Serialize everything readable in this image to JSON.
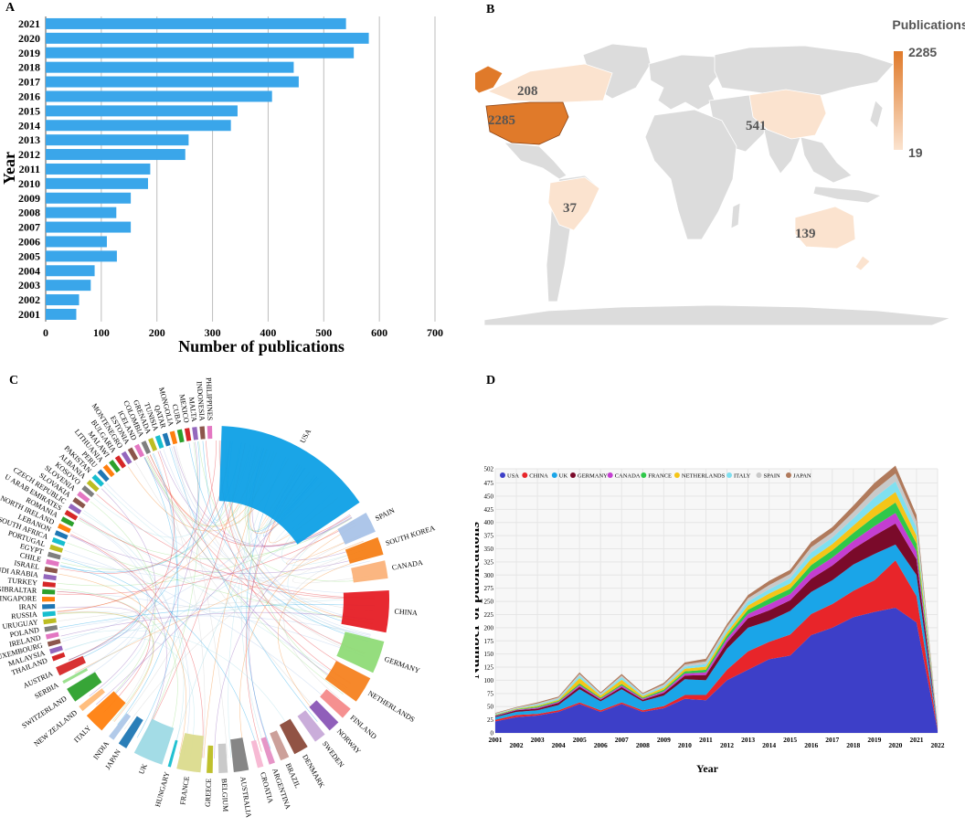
{
  "chart_data": [
    {
      "panel": "A",
      "type": "bar",
      "orientation": "horizontal",
      "categories": [
        "2021",
        "2020",
        "2019",
        "2018",
        "2017",
        "2016",
        "2015",
        "2014",
        "2013",
        "2012",
        "2011",
        "2010",
        "2009",
        "2008",
        "2007",
        "2006",
        "2005",
        "2004",
        "2003",
        "2002",
        "2001"
      ],
      "values": [
        540,
        581,
        554,
        446,
        455,
        407,
        345,
        333,
        257,
        251,
        188,
        184,
        153,
        127,
        153,
        110,
        128,
        88,
        81,
        60,
        55
      ],
      "xlabel": "Number of publications",
      "ylabel": "Year",
      "xlim": [
        0,
        700
      ],
      "xticks": [
        "0",
        "100",
        "200",
        "300",
        "400",
        "500",
        "600",
        "700"
      ],
      "color": "#3aa6ea"
    },
    {
      "panel": "B",
      "type": "map",
      "legend_title": "Publications",
      "legend_max": "2285",
      "legend_min": "19",
      "regions": [
        {
          "name": "USA",
          "value": 2285,
          "label": "2285"
        },
        {
          "name": "Canada",
          "value": 208,
          "label": "208"
        },
        {
          "name": "China",
          "value": 541,
          "label": "541"
        },
        {
          "name": "Brazil",
          "value": 37,
          "label": "37"
        },
        {
          "name": "Australia",
          "value": 139,
          "label": "139"
        }
      ],
      "color_high": "#e07a2a",
      "color_low": "#fbe3cf",
      "color_none": "#dcdcdc"
    },
    {
      "panel": "C",
      "type": "chord",
      "countries_major": [
        {
          "name": "USA",
          "color": "#0ea0e6"
        },
        {
          "name": "SPAIN",
          "color": "#a9c3e8"
        },
        {
          "name": "SOUTH KOREA",
          "color": "#f57f17"
        },
        {
          "name": "CANADA",
          "color": "#fbb27a"
        },
        {
          "name": "CHINA",
          "color": "#e61e25"
        },
        {
          "name": "GERMANY",
          "color": "#8fdb77"
        },
        {
          "name": "NETHERLANDS",
          "color": "#f58220"
        },
        {
          "name": "FINLAND",
          "color": "#f48a8a"
        },
        {
          "name": "NORWAY",
          "color": "#8a56b6"
        },
        {
          "name": "SWEDEN",
          "color": "#c7a9d8"
        },
        {
          "name": "DENMARK",
          "color": "#8b4a3a"
        },
        {
          "name": "BRAZIL",
          "color": "#c99b95"
        },
        {
          "name": "ARGENTINA",
          "color": "#e58fc4"
        },
        {
          "name": "CROATIA",
          "color": "#f7b6d2"
        },
        {
          "name": "AUSTRALIA",
          "color": "#7f7f7f"
        },
        {
          "name": "BELGIUM",
          "color": "#c7c7c7"
        },
        {
          "name": "GREECE",
          "color": "#bcbd22"
        },
        {
          "name": "FRANCE",
          "color": "#dbdb8d"
        },
        {
          "name": "HUNGARY",
          "color": "#17becf"
        },
        {
          "name": "UK",
          "color": "#9edae5"
        },
        {
          "name": "JAPAN",
          "color": "#1f77b4"
        },
        {
          "name": "INDIA",
          "color": "#aec7e8"
        },
        {
          "name": "ITALY",
          "color": "#ff7f0e"
        },
        {
          "name": "NEW ZEALAND",
          "color": "#ffbb78"
        },
        {
          "name": "SWITZERLAND",
          "color": "#2ca02c"
        },
        {
          "name": "SERBIA",
          "color": "#98df8a"
        },
        {
          "name": "AUSTRIA",
          "color": "#d62728"
        }
      ],
      "countries_minor": [
        "THAILAND",
        "MALAYSIA",
        "LUXEMBOURG",
        "IRELAND",
        "POLAND",
        "URUGUAY",
        "RUSSIA",
        "IRAN",
        "SINGAPORE",
        "GIBRALTAR",
        "TURKEY",
        "SAUDI ARABIA",
        "ISRAEL",
        "CHILE",
        "EGYPT",
        "PORTUGAL",
        "SOUTH AFRICA",
        "LEBANON",
        "NORTH IRELAND",
        "ROMANIA",
        "U ARAB EMIRATES",
        "CZECH REPUBLIC",
        "SLOVAKIA",
        "SLOVENIA",
        "KOSOVO",
        "ALBANIA",
        "PAKISTAN",
        "PERU",
        "LITHUANIA",
        "MALAWI",
        "BULGARIA",
        "MONTENEGRO",
        "ESTONIA",
        "ICELAND",
        "COLOMBIA",
        "GRENADA",
        "TUNISIA",
        "QATAR",
        "MONGOLIA",
        "CUBA",
        "MEXICO",
        "MALTA",
        "INDONESIA",
        "PHILIPPINES"
      ]
    },
    {
      "panel": "D",
      "type": "area",
      "stacked": true,
      "x": [
        "2001",
        "2002",
        "2003",
        "2004",
        "2005",
        "2006",
        "2007",
        "2008",
        "2009",
        "2010",
        "2011",
        "2012",
        "2013",
        "2014",
        "2015",
        "2016",
        "2017",
        "2018",
        "2019",
        "2020",
        "2021",
        "2022"
      ],
      "series": [
        {
          "name": "USA",
          "color": "#3d3fc8",
          "values": [
            22,
            30,
            33,
            40,
            55,
            40,
            55,
            40,
            47,
            65,
            62,
            100,
            120,
            140,
            147,
            186,
            200,
            220,
            230,
            238,
            210,
            5
          ]
        },
        {
          "name": "CHINA",
          "color": "#e8252a",
          "values": [
            3,
            4,
            3,
            3,
            3,
            3,
            3,
            3,
            4,
            7,
            10,
            20,
            35,
            33,
            40,
            40,
            45,
            50,
            60,
            90,
            50,
            3
          ]
        },
        {
          "name": "UK",
          "color": "#1aa5e8",
          "values": [
            5,
            6,
            7,
            10,
            25,
            17,
            25,
            17,
            20,
            30,
            28,
            40,
            45,
            40,
            45,
            42,
            45,
            50,
            50,
            30,
            40,
            2
          ]
        },
        {
          "name": "GERMANY",
          "color": "#7a0a2a",
          "values": [
            2,
            3,
            3,
            4,
            5,
            3,
            4,
            3,
            5,
            7,
            10,
            12,
            18,
            20,
            20,
            25,
            28,
            30,
            35,
            40,
            30,
            1
          ]
        },
        {
          "name": "CANADA",
          "color": "#c43ed1",
          "values": [
            1,
            1,
            2,
            2,
            3,
            2,
            3,
            2,
            3,
            4,
            5,
            7,
            8,
            12,
            12,
            14,
            15,
            15,
            18,
            20,
            15,
            1
          ]
        },
        {
          "name": "FRANCE",
          "color": "#2fc84a",
          "values": [
            1,
            1,
            2,
            2,
            3,
            2,
            3,
            2,
            3,
            4,
            5,
            6,
            8,
            10,
            10,
            12,
            14,
            15,
            18,
            20,
            15,
            1
          ]
        },
        {
          "name": "NETHERLANDS",
          "color": "#f5c518",
          "values": [
            1,
            1,
            2,
            2,
            10,
            4,
            8,
            3,
            4,
            5,
            6,
            6,
            8,
            10,
            10,
            12,
            12,
            14,
            18,
            20,
            15,
            1
          ]
        },
        {
          "name": "ITALY",
          "color": "#7fe0f0",
          "values": [
            1,
            1,
            2,
            2,
            5,
            2,
            5,
            2,
            3,
            4,
            5,
            6,
            8,
            8,
            10,
            12,
            12,
            14,
            18,
            20,
            15,
            1
          ]
        },
        {
          "name": "SPAIN",
          "color": "#c9c9c9",
          "values": [
            1,
            1,
            2,
            2,
            3,
            2,
            3,
            2,
            3,
            4,
            5,
            5,
            6,
            8,
            8,
            10,
            10,
            12,
            14,
            15,
            12,
            1
          ]
        },
        {
          "name": "JAPAN",
          "color": "#b07a5c",
          "values": [
            1,
            1,
            2,
            2,
            3,
            2,
            3,
            2,
            3,
            4,
            5,
            5,
            6,
            8,
            8,
            10,
            10,
            12,
            14,
            15,
            12,
            1
          ]
        }
      ],
      "xlabel": "Year",
      "ylabel": "Number of publications",
      "ylim": [
        0,
        502
      ],
      "yticks": [
        "0",
        "25",
        "50",
        "75",
        "100",
        "125",
        "150",
        "175",
        "200",
        "225",
        "250",
        "275",
        "300",
        "325",
        "350",
        "375",
        "400",
        "425",
        "450",
        "475",
        "502"
      ]
    }
  ],
  "panel_labels": {
    "a": "A",
    "b": "B",
    "c": "C",
    "d": "D"
  }
}
